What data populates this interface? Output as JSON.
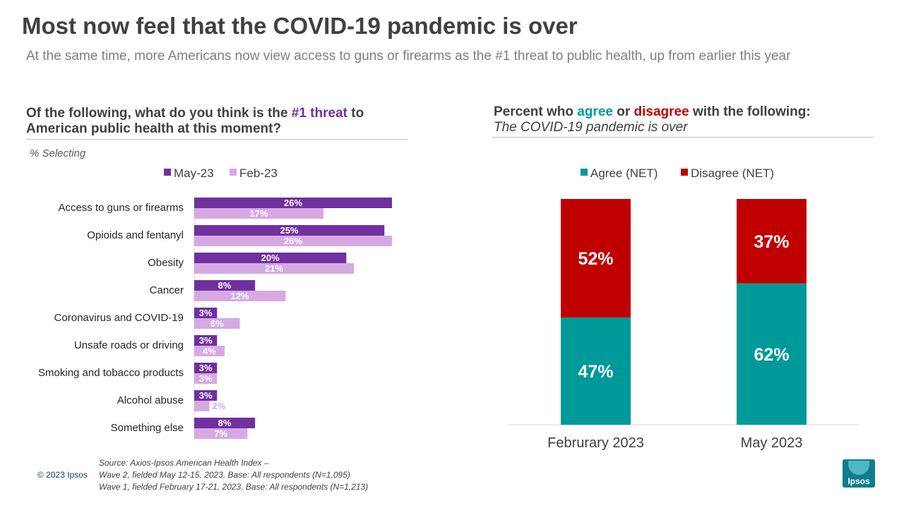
{
  "title": "Most now feel that the COVID-19 pandemic is over",
  "subtitle": "At the same time, more Americans now view access to guns or firearms as the #1 threat to public health, up from earlier this year",
  "left_panel": {
    "question_pre": "Of the following,  what do you think is the ",
    "question_highlight": "#1 threat",
    "question_post": " to American public health at this moment?",
    "note": "% Selecting"
  },
  "right_panel": {
    "prefix": "Percent who ",
    "agree_word": "agree",
    "mid": " or ",
    "disagree_word": "disagree",
    "suffix": " with the following:",
    "statement": "The COVID-19 pandemic is over"
  },
  "colors": {
    "may": "#7030a0",
    "feb": "#d7a9e3",
    "agree": "#009999",
    "disagree": "#c00000"
  },
  "chart_data": [
    {
      "type": "bar",
      "orientation": "horizontal",
      "categories": [
        "Access to guns or firearms",
        "Opioids and fentanyl",
        "Obesity",
        "Cancer",
        "Coronavirus and COVID-19",
        "Unsafe roads or driving",
        "Smoking and tobacco products",
        "Alcohol abuse",
        "Something else"
      ],
      "series": [
        {
          "name": "May-23",
          "values": [
            26,
            25,
            20,
            8,
            3,
            3,
            3,
            3,
            8
          ],
          "labels": [
            "26%",
            "25%",
            "20%",
            "8%",
            "3%",
            "3%",
            "3%",
            "3%",
            "8%"
          ]
        },
        {
          "name": "Feb-23",
          "values": [
            17,
            26,
            21,
            12,
            6,
            4,
            3,
            2,
            7
          ],
          "labels": [
            "17%",
            "26%",
            "21%",
            "12%",
            "6%",
            "4%",
            "3%",
            "2%",
            "7%"
          ]
        }
      ],
      "xlim": [
        0,
        30
      ],
      "legend": "top"
    },
    {
      "type": "bar",
      "stacked": true,
      "categories": [
        "Februrary 2023",
        "May 2023"
      ],
      "series": [
        {
          "name": "Agree (NET)",
          "values": [
            47,
            62
          ],
          "labels": [
            "47%",
            "62%"
          ]
        },
        {
          "name": "Disagree (NET)",
          "values": [
            52,
            37
          ],
          "labels": [
            "52%",
            "37%"
          ]
        }
      ],
      "ylim": [
        0,
        100
      ],
      "legend": "top"
    }
  ],
  "footer": {
    "copyright": "© 2023 Ipsos",
    "source_lines": [
      "Source: Axios-Ipsos American Health Index –",
      "Wave 2, fielded May 12-15, 2023. Base: All respondents (N=1,095)",
      "Wave 1, fielded February 17-21, 2023. Base: All respondents (N=1,213)"
    ],
    "logo_text": "Ipsos"
  }
}
